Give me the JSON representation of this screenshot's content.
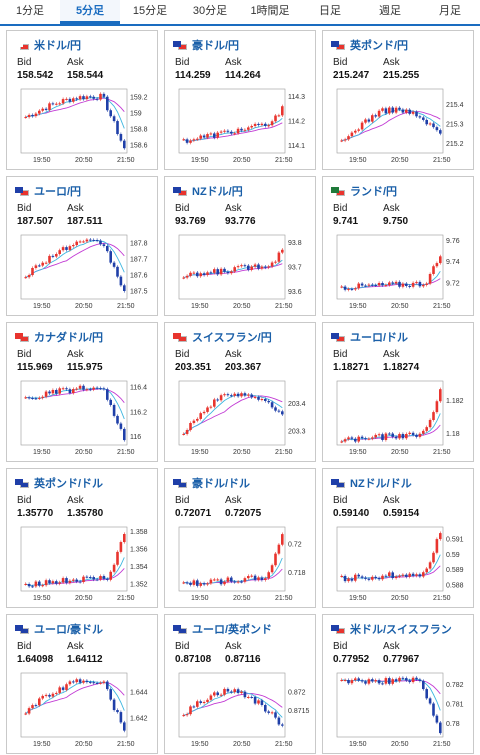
{
  "tabs": [
    "1分足",
    "5分足",
    "15分足",
    "30分足",
    "1時間足",
    "日足",
    "週足",
    "月足"
  ],
  "active_tab": 1,
  "bid_label": "Bid",
  "ask_label": "Ask",
  "x_ticks": [
    "19:50",
    "20:50",
    "21:50"
  ],
  "colors": {
    "up": "#e8342e",
    "down": "#1f3fa8",
    "avg1": "#c23bd4",
    "avg2": "#3fb7e0",
    "accent": "#1a6cc0"
  },
  "cards": [
    {
      "name": "米ドル/円",
      "flag": [
        "#ffffff",
        "#e8342e"
      ],
      "bid": "158.542",
      "ask": "158.544",
      "y_ticks": [
        "159.2",
        "159",
        "158.8",
        "158.6"
      ],
      "y_range": [
        158.5,
        159.3
      ],
      "start": 158.95,
      "end": 158.56,
      "shape": "peak-drop"
    },
    {
      "name": "豪ドル/円",
      "flag": [
        "#1f3fa8",
        "#e8342e"
      ],
      "bid": "114.259",
      "ask": "114.264",
      "y_ticks": [
        "114.3",
        "114.2",
        "114.1"
      ],
      "y_range": [
        114.07,
        114.33
      ],
      "start": 114.12,
      "end": 114.26,
      "shape": "rise-spike"
    },
    {
      "name": "英ポンド/円",
      "flag": [
        "#1f3fa8",
        "#e8342e"
      ],
      "bid": "215.247",
      "ask": "215.255",
      "y_ticks": [
        "215.4",
        "215.3",
        "215.2"
      ],
      "y_range": [
        215.15,
        215.48
      ],
      "start": 215.2,
      "end": 215.25,
      "shape": "hump"
    },
    {
      "name": "ユーロ/円",
      "flag": [
        "#1f3fa8",
        "#e8342e"
      ],
      "bid": "187.507",
      "ask": "187.511",
      "y_ticks": [
        "187.8",
        "187.7",
        "187.6",
        "187.5"
      ],
      "y_range": [
        187.45,
        187.85
      ],
      "start": 187.6,
      "end": 187.5,
      "shape": "peak-drop"
    },
    {
      "name": "NZドル/円",
      "flag": [
        "#1f3fa8",
        "#e8342e"
      ],
      "bid": "93.769",
      "ask": "93.776",
      "y_ticks": [
        "93.8",
        "93.7",
        "93.6"
      ],
      "y_range": [
        93.57,
        93.83
      ],
      "start": 93.66,
      "end": 93.77,
      "shape": "rise-spike"
    },
    {
      "name": "ランド/円",
      "flag": [
        "#1f7a3a",
        "#e8342e"
      ],
      "bid": "9.741",
      "ask": "9.750",
      "y_ticks": [
        "9.76",
        "9.74",
        "9.72"
      ],
      "y_range": [
        9.705,
        9.765
      ],
      "start": 9.716,
      "end": 9.745,
      "shape": "flat-spike"
    },
    {
      "name": "カナダドル/円",
      "flag": [
        "#e8342e",
        "#e8342e"
      ],
      "bid": "115.969",
      "ask": "115.975",
      "y_ticks": [
        "116.4",
        "116.2",
        "116"
      ],
      "y_range": [
        115.93,
        116.45
      ],
      "start": 116.3,
      "end": 115.97,
      "shape": "peak-drop"
    },
    {
      "name": "スイスフラン/円",
      "flag": [
        "#e8342e",
        "#e8342e"
      ],
      "bid": "203.351",
      "ask": "203.367",
      "y_ticks": [
        "203.4",
        "203.3"
      ],
      "y_range": [
        203.25,
        203.48
      ],
      "start": 203.3,
      "end": 203.36,
      "shape": "hump"
    },
    {
      "name": "ユーロ/ドル",
      "flag": [
        "#1f3fa8",
        "#e8342e"
      ],
      "bid": "1.18271",
      "ask": "1.18274",
      "y_ticks": [
        "1.182",
        "1.18"
      ],
      "y_range": [
        1.1793,
        1.1832
      ],
      "start": 1.1796,
      "end": 1.1827,
      "shape": "flat-spike"
    },
    {
      "name": "英ポンド/ドル",
      "flag": [
        "#1f3fa8",
        "#1f3fa8"
      ],
      "bid": "1.35770",
      "ask": "1.35780",
      "y_ticks": [
        "1.358",
        "1.356",
        "1.354",
        "1.352"
      ],
      "y_range": [
        1.3512,
        1.3585
      ],
      "start": 1.352,
      "end": 1.3577,
      "shape": "flat-spike"
    },
    {
      "name": "豪ドル/ドル",
      "flag": [
        "#1f3fa8",
        "#1f3fa8"
      ],
      "bid": "0.72071",
      "ask": "0.72075",
      "y_ticks": [
        "0.72",
        "0.718"
      ],
      "y_range": [
        0.7167,
        0.7212
      ],
      "start": 0.7172,
      "end": 0.7207,
      "shape": "flat-spike"
    },
    {
      "name": "NZドル/ドル",
      "flag": [
        "#1f3fa8",
        "#1f3fa8"
      ],
      "bid": "0.59140",
      "ask": "0.59154",
      "y_ticks": [
        "0.591",
        "0.59",
        "0.589",
        "0.588"
      ],
      "y_range": [
        0.5876,
        0.5918
      ],
      "start": 0.5884,
      "end": 0.5914,
      "shape": "flat-spike"
    },
    {
      "name": "ユーロ/豪ドル",
      "flag": [
        "#1f3fa8",
        "#1f3fa8"
      ],
      "bid": "1.64098",
      "ask": "1.64112",
      "y_ticks": [
        "1.644",
        "1.642"
      ],
      "y_range": [
        1.6405,
        1.6455
      ],
      "start": 1.6425,
      "end": 1.641,
      "shape": "peak-drop"
    },
    {
      "name": "ユーロ/英ポンド",
      "flag": [
        "#1f3fa8",
        "#1f3fa8"
      ],
      "bid": "0.87108",
      "ask": "0.87116",
      "y_ticks": [
        "0.872",
        "0.8715"
      ],
      "y_range": [
        0.8708,
        0.8725
      ],
      "start": 0.8714,
      "end": 0.8711,
      "shape": "hump"
    },
    {
      "name": "米ドル/スイスフラン",
      "flag": [
        "#1f3fa8",
        "#e8342e"
      ],
      "bid": "0.77952",
      "ask": "0.77967",
      "y_ticks": [
        "0.782",
        "0.781",
        "0.78"
      ],
      "y_range": [
        0.7793,
        0.7826
      ],
      "start": 0.7822,
      "end": 0.7795,
      "shape": "plateau-drop"
    }
  ]
}
